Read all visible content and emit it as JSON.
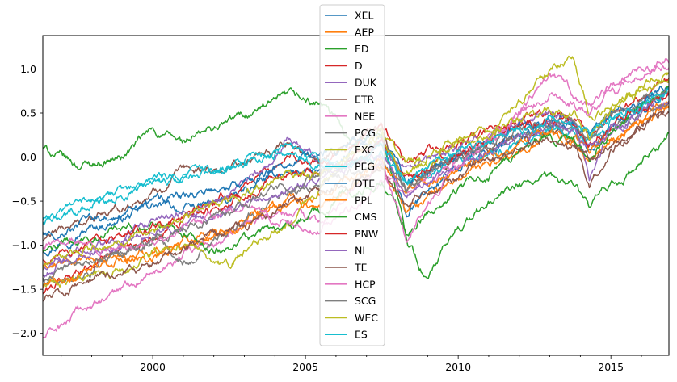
{
  "chart_data": {
    "type": "line",
    "title": "",
    "xlabel": "",
    "ylabel": "",
    "xlim": [
      1996.4,
      2016.9
    ],
    "ylim": [
      -2.25,
      1.38
    ],
    "x_ticks": [
      2000,
      2005,
      2010,
      2015
    ],
    "x_tick_labels": [
      "2000",
      "2005",
      "2010",
      "2015"
    ],
    "y_ticks": [
      1.0,
      0.5,
      0.0,
      -0.5,
      -1.0,
      -1.5,
      -2.0
    ],
    "y_tick_labels": [
      "1.0",
      "0.5",
      "0.0",
      "−0.5",
      "−1.0",
      "−1.5",
      "−2.0"
    ],
    "grid": false,
    "legend_position": "top-center",
    "x_anchors": [
      1996.4,
      1997.5,
      1999.0,
      2000.0,
      2001.0,
      2002.5,
      2003.5,
      2004.5,
      2005.5,
      2006.5,
      2007.5,
      2008.3,
      2009.0,
      2010.0,
      2011.5,
      2013.0,
      2013.8,
      2014.3,
      2015.0,
      2016.0,
      2016.9
    ],
    "series": [
      {
        "name": "XEL",
        "color": "#1f77b4",
        "values": [
          -1.05,
          -0.85,
          -0.7,
          -0.55,
          -0.6,
          -0.5,
          -0.3,
          -0.15,
          -0.2,
          0.05,
          0.15,
          -0.7,
          -0.4,
          -0.1,
          0.15,
          0.4,
          0.35,
          0.1,
          0.35,
          0.55,
          0.75
        ]
      },
      {
        "name": "AEP",
        "color": "#ff7f0e",
        "values": [
          -1.25,
          -1.2,
          -1.15,
          -1.05,
          -0.95,
          -0.8,
          -0.6,
          -0.5,
          -0.45,
          -0.3,
          -0.15,
          -0.6,
          -0.45,
          -0.25,
          0.0,
          0.25,
          0.2,
          -0.05,
          0.2,
          0.4,
          0.65
        ]
      },
      {
        "name": "ED",
        "color": "#2ca02c",
        "values": [
          0.1,
          -0.1,
          0.0,
          0.3,
          0.15,
          0.4,
          0.55,
          0.65,
          0.6,
          0.2,
          0.3,
          -0.9,
          -1.4,
          -0.8,
          -0.4,
          -0.25,
          -0.3,
          -0.6,
          -0.35,
          -0.1,
          0.25
        ]
      },
      {
        "name": "D",
        "color": "#d62728",
        "values": [
          -1.55,
          -1.3,
          -1.0,
          -0.9,
          -0.7,
          -0.45,
          -0.2,
          0.05,
          -0.1,
          0.15,
          0.35,
          -0.1,
          0.05,
          0.15,
          0.35,
          0.55,
          0.4,
          0.2,
          0.5,
          0.7,
          0.9
        ]
      },
      {
        "name": "DUK",
        "color": "#9467bd",
        "values": [
          -1.35,
          -1.1,
          -0.9,
          -0.7,
          -0.6,
          -0.4,
          -0.2,
          0.25,
          -0.05,
          0.0,
          0.2,
          -0.2,
          -0.1,
          0.1,
          0.3,
          0.5,
          0.4,
          -0.25,
          0.3,
          0.55,
          0.7
        ]
      },
      {
        "name": "ETR",
        "color": "#8c564b",
        "values": [
          -0.95,
          -0.75,
          -0.6,
          -0.4,
          -0.2,
          -0.1,
          0.0,
          0.1,
          0.0,
          0.2,
          0.35,
          -0.4,
          -0.2,
          0.0,
          0.15,
          0.3,
          0.15,
          -0.3,
          0.1,
          0.35,
          0.6
        ]
      },
      {
        "name": "NEE",
        "color": "#e377c2",
        "values": [
          -2.05,
          -1.8,
          -1.5,
          -1.25,
          -1.1,
          -0.9,
          -0.7,
          -0.65,
          -0.8,
          -0.6,
          -0.2,
          -0.45,
          -0.3,
          0.0,
          0.35,
          0.85,
          0.7,
          0.55,
          0.8,
          0.95,
          1.05
        ]
      },
      {
        "name": "PCG",
        "color": "#7f7f7f",
        "values": [
          -1.4,
          -1.3,
          -1.1,
          -0.9,
          -1.2,
          -0.8,
          -0.55,
          -0.4,
          -0.3,
          -0.2,
          -0.1,
          -0.35,
          -0.2,
          -0.05,
          0.15,
          0.4,
          0.3,
          0.1,
          0.3,
          0.5,
          0.65
        ]
      },
      {
        "name": "EXC",
        "color": "#bcbd22",
        "values": [
          -1.45,
          -1.4,
          -1.3,
          -1.1,
          -1.0,
          -1.25,
          -0.95,
          -0.7,
          -0.35,
          0.1,
          0.35,
          -0.1,
          0.0,
          0.2,
          0.45,
          0.95,
          1.15,
          0.45,
          0.6,
          0.8,
          0.95
        ]
      },
      {
        "name": "PEG",
        "color": "#17becf",
        "values": [
          -0.75,
          -0.6,
          -0.45,
          -0.3,
          -0.2,
          -0.1,
          0.05,
          0.1,
          -0.05,
          -0.15,
          0.05,
          -0.3,
          -0.2,
          0.0,
          0.1,
          0.3,
          0.25,
          0.2,
          0.4,
          0.6,
          0.8
        ]
      },
      {
        "name": "DTE",
        "color": "#1f77b4",
        "values": [
          -0.9,
          -0.8,
          -0.65,
          -0.5,
          -0.45,
          -0.35,
          -0.2,
          -0.05,
          0.05,
          0.15,
          0.25,
          -0.3,
          -0.15,
          0.05,
          0.25,
          0.45,
          0.4,
          0.2,
          0.45,
          0.6,
          0.8
        ]
      },
      {
        "name": "PPL",
        "color": "#ff7f0e",
        "values": [
          -1.5,
          -1.35,
          -1.2,
          -1.15,
          -1.05,
          -0.85,
          -0.65,
          -0.5,
          -0.55,
          -0.35,
          -0.05,
          -0.4,
          -0.3,
          -0.15,
          0.1,
          0.3,
          0.25,
          0.05,
          0.25,
          0.4,
          0.55
        ]
      },
      {
        "name": "CMS",
        "color": "#2ca02c",
        "values": [
          -1.1,
          -0.95,
          -0.8,
          -0.75,
          -0.9,
          -1.05,
          -0.9,
          -0.75,
          -0.6,
          -0.45,
          -0.25,
          -0.8,
          -0.6,
          -0.4,
          -0.1,
          0.25,
          0.2,
          0.0,
          0.3,
          0.55,
          0.75
        ]
      },
      {
        "name": "PNW",
        "color": "#d62728",
        "values": [
          -1.2,
          -1.05,
          -0.9,
          -0.8,
          -0.7,
          -0.5,
          -0.35,
          -0.2,
          -0.15,
          0.0,
          0.2,
          -0.25,
          -0.1,
          0.05,
          0.25,
          0.45,
          0.35,
          0.15,
          0.4,
          0.55,
          0.7
        ]
      },
      {
        "name": "NI",
        "color": "#9467bd",
        "values": [
          -1.3,
          -1.15,
          -1.0,
          -0.85,
          -0.75,
          -0.6,
          -0.45,
          -0.3,
          -0.25,
          -0.1,
          0.05,
          -0.4,
          -0.25,
          -0.05,
          0.15,
          0.35,
          0.3,
          0.1,
          0.3,
          0.5,
          0.65
        ]
      },
      {
        "name": "TE",
        "color": "#8c564b",
        "values": [
          -1.6,
          -1.45,
          -1.3,
          -1.2,
          -1.05,
          -0.85,
          -0.7,
          -0.55,
          -0.45,
          -0.3,
          -0.1,
          -0.55,
          -0.4,
          -0.2,
          0.0,
          0.2,
          0.15,
          -0.05,
          0.15,
          0.35,
          0.5
        ]
      },
      {
        "name": "HCP",
        "color": "#e377c2",
        "values": [
          -1.0,
          -0.95,
          -1.05,
          -1.0,
          -0.85,
          -0.6,
          -0.55,
          -0.75,
          -0.85,
          -0.4,
          -0.05,
          -0.9,
          -0.5,
          -0.1,
          0.3,
          0.75,
          0.6,
          0.45,
          0.7,
          0.9,
          1.1
        ]
      },
      {
        "name": "SCG",
        "color": "#7f7f7f",
        "values": [
          -1.35,
          -1.2,
          -1.05,
          -0.95,
          -0.8,
          -0.6,
          -0.45,
          -0.3,
          -0.2,
          -0.05,
          0.15,
          -0.3,
          -0.15,
          0.05,
          0.25,
          0.45,
          0.4,
          0.2,
          0.45,
          0.6,
          0.75
        ]
      },
      {
        "name": "WEC",
        "color": "#bcbd22",
        "values": [
          -1.25,
          -1.1,
          -0.95,
          -0.85,
          -0.7,
          -0.5,
          -0.35,
          -0.2,
          -0.15,
          0.0,
          0.2,
          -0.2,
          -0.05,
          0.15,
          0.35,
          0.55,
          0.5,
          0.3,
          0.55,
          0.75,
          0.9
        ]
      },
      {
        "name": "ES",
        "color": "#17becf",
        "values": [
          -0.7,
          -0.55,
          -0.4,
          -0.3,
          -0.25,
          -0.15,
          0.0,
          0.05,
          -0.1,
          -0.05,
          0.1,
          -0.25,
          -0.1,
          0.05,
          0.2,
          0.4,
          0.35,
          0.25,
          0.45,
          0.6,
          0.8
        ]
      }
    ]
  }
}
